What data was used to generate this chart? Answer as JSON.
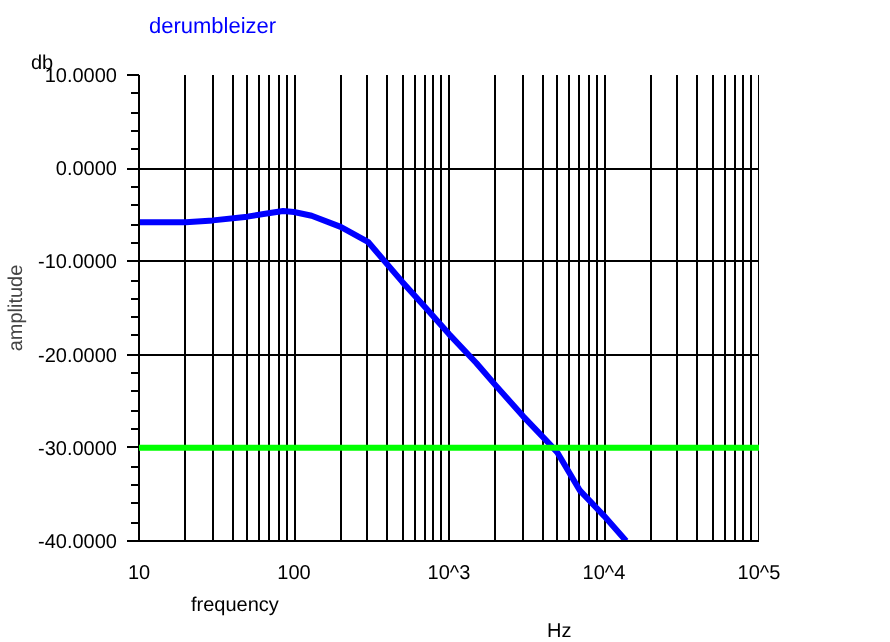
{
  "chart_data": {
    "type": "line",
    "title": "derumbleizer",
    "xlabel": "frequency",
    "ylabel": "amplitude",
    "annotations": [
      "db",
      "Hz"
    ],
    "log": "x",
    "grid": true,
    "marker": "none",
    "line_style": "solid",
    "xlim": [
      10,
      100000
    ],
    "ylim": [
      -40,
      10
    ],
    "xticks": [
      {
        "value": 10,
        "label": "10"
      },
      {
        "value": 100,
        "label": "100"
      },
      {
        "value": 1000,
        "label": "10^3"
      },
      {
        "value": 10000,
        "label": "10^4"
      },
      {
        "value": 100000,
        "label": "10^5"
      }
    ],
    "yticks": [
      {
        "value": -40,
        "label": "-40.0000"
      },
      {
        "value": -30,
        "label": "-30.0000"
      },
      {
        "value": -20,
        "label": "-20.0000"
      },
      {
        "value": -10,
        "label": "-10.0000"
      },
      {
        "value": 0,
        "label": "0.0000"
      },
      {
        "value": 10,
        "label": "10.0000"
      }
    ],
    "ref_lines": [
      {
        "axis": "y",
        "value": -30,
        "label": null,
        "color": "#00ff00",
        "line_style": "solid"
      }
    ],
    "series": [
      {
        "color": "#0000ff",
        "x": [
          10,
          20,
          30,
          50,
          70,
          85,
          100,
          130,
          200,
          300,
          500,
          700,
          1000,
          1500,
          2000,
          3000,
          4400,
          5000,
          7000,
          10000,
          13900
        ],
        "values": [
          -5.8,
          -5.8,
          -5.6,
          -5.2,
          -4.8,
          -4.6,
          -4.7,
          -5.1,
          -6.3,
          -7.9,
          -12.2,
          -14.9,
          -17.8,
          -20.9,
          -23.3,
          -26.6,
          -29.5,
          -30.5,
          -34.6,
          -37.3,
          -40
        ]
      }
    ]
  }
}
